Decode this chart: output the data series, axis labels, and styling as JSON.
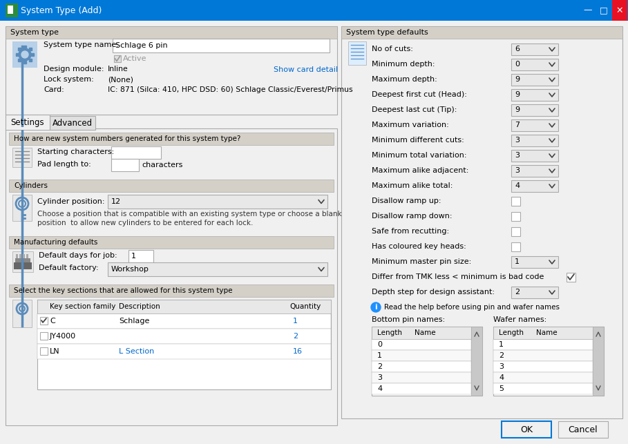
{
  "title": "System Type (Add)",
  "title_bar_color": "#0078D7",
  "title_bar_text_color": "#FFFFFF",
  "dialog_bg": "#F0F0F0",
  "white": "#FFFFFF",
  "light_gray": "#E8E8E8",
  "section_bg": "#D4D0C8",
  "dark_gray": "#666666",
  "text_color": "#000000",
  "blue_link": "#0066CC",
  "border_color": "#AAAAAA",
  "dropdown_bg": "#E8E8E8",
  "checkbox_checked_color": "#555555",
  "left_panel": {
    "system_type_label": "System type",
    "system_type_name_label": "System type name:",
    "system_type_name_value": "Schlage 6 pin",
    "active_label": "Active",
    "design_module_label": "Design module:",
    "design_module_value": "Inline",
    "lock_system_label": "Lock system:",
    "lock_system_value": "(None)",
    "card_label": "Card:",
    "card_value": "IC: 871 (Silca: 410, HPC DSD: 60) Schlage Classic/Everest/Primus",
    "show_card_detail": "Show card detail",
    "tab_settings": "Settings",
    "tab_advanced": "Advanced",
    "system_numbers_header": "How are new system numbers generated for this system type?",
    "starting_chars_label": "Starting characters:",
    "pad_length_label": "Pad length to:",
    "pad_length_suffix": "characters",
    "cylinders_header": "Cylinders",
    "cylinder_position_label": "Cylinder position:",
    "cylinder_position_value": "12",
    "cylinder_help1": "Choose a position that is compatible with an existing system type or choose a blank",
    "cylinder_help2": "position  to allow new cylinders to be entered for each lock.",
    "manufacturing_header": "Manufacturing defaults",
    "default_days_label": "Default days for job:",
    "default_days_value": "1",
    "default_factory_label": "Default factory:",
    "default_factory_value": "Workshop",
    "key_sections_header": "Select the key sections that are allowed for this system type",
    "key_section_col1": "Key section family",
    "key_section_col2": "Description",
    "key_section_col3": "Quantity",
    "key_sections": [
      {
        "checked": true,
        "family": "C",
        "description": "Schlage",
        "quantity": "1"
      },
      {
        "checked": false,
        "family": "JY4000",
        "description": "",
        "quantity": "2"
      },
      {
        "checked": false,
        "family": "LN",
        "description": "L Section",
        "quantity": "16"
      }
    ]
  },
  "right_panel": {
    "header": "System type defaults",
    "settings": [
      {
        "label": "No of cuts:",
        "value": "6",
        "type": "dropdown"
      },
      {
        "label": "Minimum depth:",
        "value": "0",
        "type": "dropdown"
      },
      {
        "label": "Maximum depth:",
        "value": "9",
        "type": "dropdown"
      },
      {
        "label": "Deepest first cut (Head):",
        "value": "9",
        "type": "dropdown"
      },
      {
        "label": "Deepest last cut (Tip):",
        "value": "9",
        "type": "dropdown"
      },
      {
        "label": "Maximum variation:",
        "value": "7",
        "type": "dropdown"
      },
      {
        "label": "Minimum different cuts:",
        "value": "3",
        "type": "dropdown"
      },
      {
        "label": "Minimum total variation:",
        "value": "3",
        "type": "dropdown"
      },
      {
        "label": "Maximum alike adjacent:",
        "value": "3",
        "type": "dropdown"
      },
      {
        "label": "Maximum alike total:",
        "value": "4",
        "type": "dropdown"
      },
      {
        "label": "Disallow ramp up:",
        "value": false,
        "type": "checkbox"
      },
      {
        "label": "Disallow ramp down:",
        "value": false,
        "type": "checkbox"
      },
      {
        "label": "Safe from recutting:",
        "value": false,
        "type": "checkbox"
      },
      {
        "label": "Has coloured key heads:",
        "value": false,
        "type": "checkbox"
      },
      {
        "label": "Minimum master pin size:",
        "value": "1",
        "type": "dropdown"
      },
      {
        "label": "Differ from TMK less < minimum is bad code",
        "value": true,
        "type": "checkbox_inline"
      },
      {
        "label": "Depth step for design assistant:",
        "value": "2",
        "type": "dropdown"
      }
    ],
    "pin_help": "Read the help before using pin and wafer names",
    "bottom_pin_label": "Bottom pin names:",
    "wafer_label": "Wafer names:",
    "bottom_pin_rows": [
      "0",
      "1",
      "2",
      "3",
      "4"
    ],
    "wafer_rows": [
      "1",
      "2",
      "3",
      "4",
      "5"
    ]
  },
  "buttons": {
    "ok": "OK",
    "cancel": "Cancel"
  }
}
